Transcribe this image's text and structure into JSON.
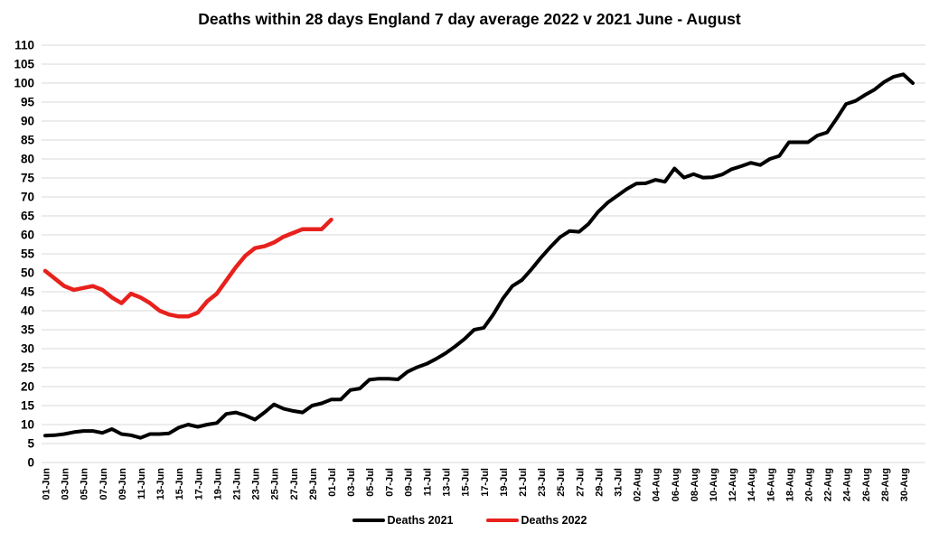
{
  "chart_data": {
    "type": "line",
    "title": "Deaths within 28 days England 7 day average 2022 v 2021 June - August",
    "ylim": [
      0,
      110
    ],
    "y_tick_step": 5,
    "y_tick_labels": [
      0,
      5,
      10,
      15,
      20,
      25,
      30,
      35,
      40,
      45,
      50,
      55,
      60,
      65,
      70,
      75,
      80,
      85,
      90,
      95,
      100,
      105,
      110
    ],
    "x_days_total": 92,
    "x_tick_labels": [
      "01-Jun",
      "03-Jun",
      "05-Jun",
      "07-Jun",
      "09-Jun",
      "11-Jun",
      "13-Jun",
      "15-Jun",
      "17-Jun",
      "19-Jun",
      "21-Jun",
      "23-Jun",
      "25-Jun",
      "27-Jun",
      "29-Jun",
      "01-Jul",
      "03-Jul",
      "05-Jul",
      "07-Jul",
      "09-Jul",
      "11-Jul",
      "13-Jul",
      "15-Jul",
      "17-Jul",
      "19-Jul",
      "21-Jul",
      "23-Jul",
      "25-Jul",
      "27-Jul",
      "29-Jul",
      "31-Jul",
      "02-Aug",
      "04-Aug",
      "06-Aug",
      "08-Aug",
      "10-Aug",
      "12-Aug",
      "14-Aug",
      "16-Aug",
      "18-Aug",
      "20-Aug",
      "22-Aug",
      "24-Aug",
      "26-Aug",
      "28-Aug",
      "30-Aug"
    ],
    "gridline_color": "#d9d9d9",
    "grid": "horizontal-only",
    "legend_position": "bottom",
    "series": [
      {
        "name": "Deaths 2021",
        "color": "#000000",
        "width": 4,
        "start_day": 0,
        "values": [
          7.1,
          7.2,
          7.5,
          8.0,
          8.3,
          8.3,
          7.8,
          8.8,
          7.5,
          7.2,
          6.5,
          7.5,
          7.5,
          7.7,
          9.2,
          10.0,
          9.4,
          10.0,
          10.4,
          12.8,
          13.2,
          12.4,
          11.3,
          13.2,
          15.3,
          14.2,
          13.6,
          13.2,
          15.0,
          15.6,
          16.6,
          16.6,
          19.1,
          19.5,
          21.8,
          22.1,
          22.1,
          21.9,
          23.9,
          25.1,
          26.0,
          27.3,
          28.8,
          30.6,
          32.6,
          35.0,
          35.5,
          39.0,
          43.2,
          46.5,
          48.1,
          50.9,
          54.0,
          56.8,
          59.4,
          61.0,
          60.8,
          62.9,
          66.1,
          68.5,
          70.3,
          72.1,
          73.5,
          73.6,
          74.5,
          74.0,
          77.5,
          75.1,
          76.0,
          75.1,
          75.2,
          75.9,
          77.3,
          78.1,
          79.0,
          78.4,
          80.0,
          80.8,
          84.4,
          84.4,
          84.4,
          86.2,
          87.0,
          90.6,
          94.5,
          95.3,
          96.9,
          98.3,
          100.3,
          101.7,
          102.3,
          100.0
        ]
      },
      {
        "name": "Deaths 2022",
        "color": "#e8211d",
        "width": 4.5,
        "start_day": 0,
        "values": [
          50.5,
          48.5,
          46.5,
          45.5,
          46.0,
          46.5,
          45.5,
          43.5,
          42.0,
          44.5,
          43.5,
          42.0,
          40.0,
          39.0,
          38.5,
          38.5,
          39.5,
          42.5,
          44.5,
          48.0,
          51.5,
          54.5,
          56.5,
          57.0,
          58.0,
          59.5,
          60.5,
          61.5,
          61.5,
          61.5,
          64.0
        ]
      }
    ]
  }
}
